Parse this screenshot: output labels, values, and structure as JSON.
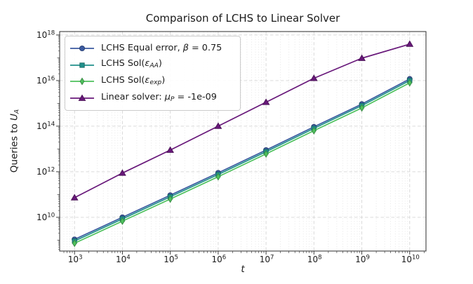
{
  "chart_data": {
    "type": "line",
    "title": "Comparison of LCHS to Linear Solver",
    "xlabel": "t",
    "xlabel_parts": [
      {
        "t": "t",
        "s": "i"
      }
    ],
    "ylabel": "Queries to U_A",
    "ylabel_parts": [
      {
        "t": "Queries to ",
        "s": "p"
      },
      {
        "t": "U",
        "s": "i"
      },
      {
        "t": "A",
        "s": "sub"
      }
    ],
    "x_scale": "log",
    "y_scale": "log",
    "x_tick_base": "10",
    "x_tick_exponents": [
      3,
      4,
      5,
      6,
      7,
      8,
      9,
      10
    ],
    "y_tick_exponents": [
      10,
      12,
      14,
      16,
      18
    ],
    "xlim_log10": [
      2.69,
      10.34
    ],
    "ylim_log10": [
      8.52,
      18.15
    ],
    "grid": {
      "h_major": true,
      "v_major": true,
      "v_minor_mantissas": [
        2,
        3,
        4,
        5,
        6,
        7,
        8,
        9
      ],
      "style": "dashed"
    },
    "legend_position": "upper-left",
    "x_log10": [
      3,
      4,
      5,
      6,
      7,
      8,
      9,
      10
    ],
    "series": [
      {
        "name": "LCHS Equal error, β = 0.75",
        "label_parts": [
          {
            "t": "LCHS Equal error, ",
            "s": "p"
          },
          {
            "t": "β",
            "s": "i"
          },
          {
            "t": " = 0.75",
            "s": "p"
          }
        ],
        "color": "#3b5aa0",
        "marker": "circle",
        "y_log10": [
          9.03,
          10.0,
          10.97,
          11.95,
          12.95,
          13.97,
          14.97,
          16.07
        ]
      },
      {
        "name": "LCHS Sol(ε_AA)",
        "label_parts": [
          {
            "t": "LCHS Sol(",
            "s": "p"
          },
          {
            "t": "ε",
            "s": "i"
          },
          {
            "t": "AA",
            "s": "sub"
          },
          {
            "t": ")",
            "s": "p"
          }
        ],
        "color": "#21918c",
        "marker": "square",
        "y_log10": [
          8.96,
          9.93,
          10.9,
          11.88,
          12.88,
          13.9,
          14.9,
          16.0
        ]
      },
      {
        "name": "LCHS Sol(ε_exp)",
        "label_parts": [
          {
            "t": "LCHS Sol(",
            "s": "p"
          },
          {
            "t": "ε",
            "s": "i"
          },
          {
            "t": "exp",
            "s": "sub"
          },
          {
            "t": ")",
            "s": "p"
          }
        ],
        "color": "#4ec15d",
        "marker": "diamond",
        "y_log10": [
          8.86,
          9.83,
          10.8,
          11.78,
          12.78,
          13.8,
          14.8,
          15.9
        ]
      },
      {
        "name": "Linear solver: μ_P = -1e-09",
        "label_parts": [
          {
            "t": "Linear solver: ",
            "s": "p"
          },
          {
            "t": "μ",
            "s": "i"
          },
          {
            "t": "P",
            "s": "sub"
          },
          {
            "t": " = -1e-09",
            "s": "p"
          }
        ],
        "color": "#68187a",
        "marker": "triangle",
        "y_log10": [
          10.86,
          11.94,
          12.95,
          14.0,
          15.05,
          16.1,
          16.98,
          17.6
        ]
      }
    ]
  },
  "colors": {
    "background": "#ffffff",
    "text": "#1a1a1a",
    "spine": "#2b2b2b",
    "grid_major": "#d6d6d6",
    "grid_minor": "#e6e6e6",
    "legend_border": "#cccccc"
  }
}
